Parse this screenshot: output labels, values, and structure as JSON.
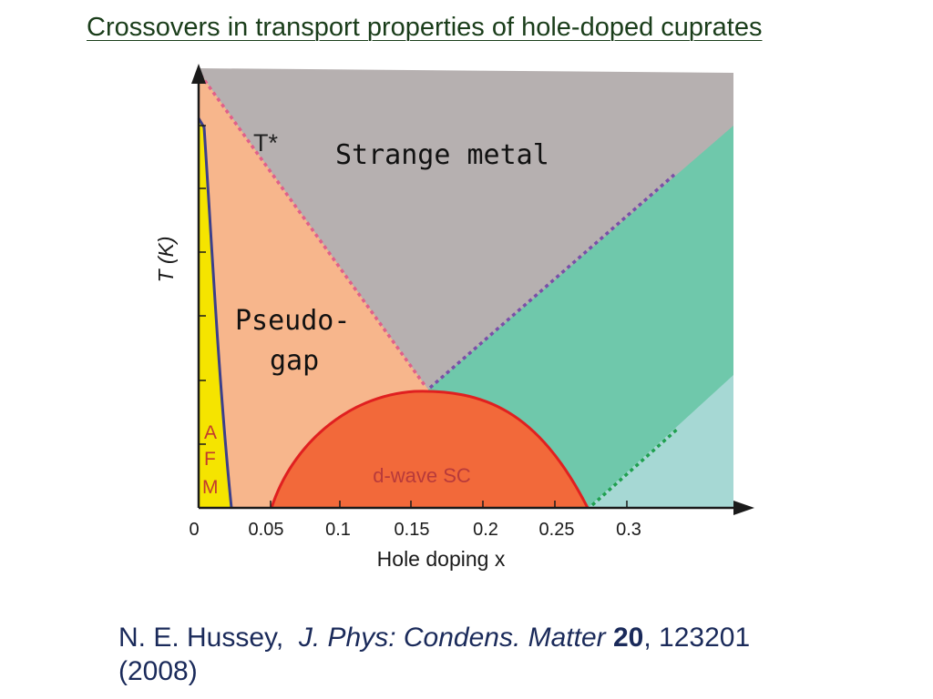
{
  "title": "Crossovers in transport properties of hole-doped cuprates",
  "diagram": {
    "y_axis_label": "T (K)",
    "x_axis_label": "Hole doping x",
    "x_ticks": [
      "0",
      "0.05",
      "0.1",
      "0.15",
      "0.2",
      "0.25",
      "0.3"
    ],
    "regions": {
      "strange_metal": "Strange metal",
      "pseudogap_line1": "Pseudo-",
      "pseudogap_line2": "gap",
      "tstar": "T*",
      "superconductor": "d-wave SC",
      "afm_a": "A",
      "afm_f": "F",
      "afm_m": "M"
    },
    "colors": {
      "strange_metal": "#b6b0b0",
      "pseudogap": "#f7b68c",
      "afm": "#f5e400",
      "superconductor": "#f2693a",
      "overdoped": "#6fc8ab",
      "fermi_liquid": "#a6d8d4",
      "tstar_line": "#e0608a",
      "crossover_line": "#7a4fa8",
      "afm_line": "#3b3f8c",
      "sc_dome_line": "#e02020",
      "fl_line": "#20a050",
      "afm_text": "#c23b2e",
      "sc_text": "#b83a3a"
    }
  },
  "citation": {
    "authors": "N. E. Hussey,",
    "journal": "J. Phys: Condens. Matter",
    "volume": "20",
    "pages": ", 123201",
    "year": "(2008)"
  }
}
